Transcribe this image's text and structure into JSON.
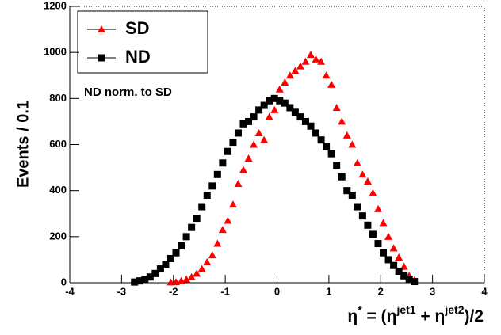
{
  "chart_data": {
    "type": "scatter",
    "y_label": "Events / 0.1",
    "x_label": [
      "η",
      "*",
      " = (η",
      "jet1",
      " + η",
      "jet2",
      ")/2"
    ],
    "annotation": "ND norm. to SD",
    "xlim": [
      -4,
      4
    ],
    "xticks": [
      -4,
      -3,
      -2,
      -1,
      0,
      1,
      2,
      3,
      4
    ],
    "ylim": [
      0,
      1200
    ],
    "yticks": [
      0,
      200,
      400,
      600,
      800,
      1000,
      1200
    ],
    "grid": false,
    "legend": "upper left",
    "series": [
      {
        "name": "SD",
        "color": "#ff0000",
        "marker": "triangle",
        "x": [
          -2.05,
          -1.95,
          -1.85,
          -1.75,
          -1.65,
          -1.55,
          -1.45,
          -1.35,
          -1.25,
          -1.15,
          -1.05,
          -0.95,
          -0.85,
          -0.75,
          -0.65,
          -0.55,
          -0.45,
          -0.35,
          -0.25,
          -0.15,
          -0.05,
          0.05,
          0.15,
          0.25,
          0.35,
          0.45,
          0.55,
          0.65,
          0.75,
          0.85,
          0.95,
          1.05,
          1.15,
          1.25,
          1.35,
          1.45,
          1.55,
          1.65,
          1.75,
          1.85,
          1.95,
          2.05,
          2.15,
          2.25,
          2.35,
          2.45,
          2.55,
          2.65
        ],
        "values": [
          2,
          3,
          8,
          15,
          25,
          40,
          60,
          90,
          120,
          170,
          230,
          270,
          340,
          430,
          490,
          540,
          600,
          650,
          620,
          720,
          750,
          840,
          870,
          900,
          920,
          940,
          960,
          990,
          970,
          960,
          900,
          860,
          760,
          700,
          640,
          600,
          520,
          470,
          440,
          390,
          320,
          260,
          200,
          150,
          110,
          70,
          30,
          10
        ]
      },
      {
        "name": "ND",
        "color": "#000000",
        "marker": "square",
        "x": [
          -2.75,
          -2.65,
          -2.55,
          -2.45,
          -2.35,
          -2.25,
          -2.15,
          -2.05,
          -1.95,
          -1.85,
          -1.75,
          -1.65,
          -1.55,
          -1.45,
          -1.35,
          -1.25,
          -1.15,
          -1.05,
          -0.95,
          -0.85,
          -0.75,
          -0.65,
          -0.55,
          -0.45,
          -0.35,
          -0.25,
          -0.15,
          -0.05,
          0.05,
          0.15,
          0.25,
          0.35,
          0.45,
          0.55,
          0.65,
          0.75,
          0.85,
          0.95,
          1.05,
          1.15,
          1.25,
          1.35,
          1.45,
          1.55,
          1.65,
          1.75,
          1.85,
          1.95,
          2.05,
          2.15,
          2.25,
          2.35,
          2.45,
          2.55,
          2.65
        ],
        "values": [
          3,
          8,
          15,
          25,
          40,
          60,
          80,
          105,
          130,
          160,
          200,
          240,
          280,
          330,
          380,
          420,
          470,
          520,
          570,
          610,
          650,
          690,
          700,
          720,
          750,
          770,
          790,
          800,
          790,
          780,
          760,
          740,
          720,
          700,
          680,
          650,
          620,
          590,
          560,
          510,
          460,
          400,
          380,
          330,
          290,
          250,
          210,
          170,
          130,
          100,
          75,
          50,
          30,
          15,
          5
        ]
      }
    ]
  }
}
